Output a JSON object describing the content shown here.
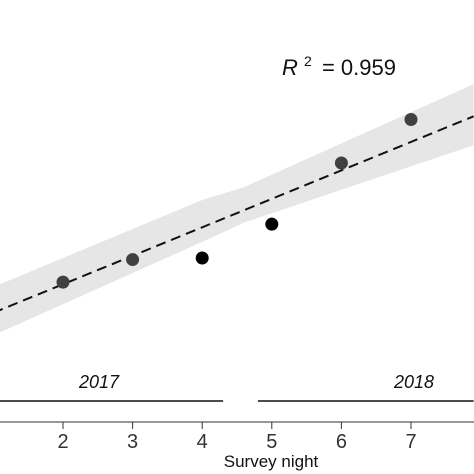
{
  "chart_data": {
    "type": "scatter",
    "xlabel": "Survey night",
    "ylabel": "",
    "title": "",
    "xlim": [
      1.0,
      7.9
    ],
    "ylim": [
      0.0,
      1.0
    ],
    "x_ticks": [
      2,
      3,
      4,
      5,
      6,
      7
    ],
    "x_tick_labels": [
      "2",
      "3",
      "4",
      "5",
      "6",
      "7"
    ],
    "grid": false,
    "series": [
      {
        "points": [
          {
            "x": 2,
            "y": 0.335,
            "color": "#404040"
          },
          {
            "x": 3,
            "y": 0.405,
            "color": "#404040"
          },
          {
            "x": 4,
            "y": 0.41,
            "color": "#000000"
          },
          {
            "x": 5,
            "y": 0.515,
            "color": "#000000"
          },
          {
            "x": 6,
            "y": 0.705,
            "color": "#404040"
          },
          {
            "x": 7,
            "y": 0.84,
            "color": "#404040"
          }
        ]
      }
    ],
    "fit": {
      "style": "dashed",
      "line": [
        [
          1.0,
          0.24
        ],
        [
          7.9,
          0.85
        ]
      ],
      "ci_upper": [
        [
          1.0,
          0.32
        ],
        [
          4.0,
          0.59
        ],
        [
          4.6,
          0.63
        ],
        [
          7.9,
          0.95
        ]
      ],
      "ci_lower": [
        [
          1.0,
          0.17
        ],
        [
          4.0,
          0.46
        ],
        [
          4.6,
          0.52
        ],
        [
          7.9,
          0.76
        ]
      ],
      "ci_color": "#e6e6e6"
    },
    "annotation": {
      "r2_label": "R",
      "r2_superscript": "2",
      "r2_value": "= 0.959"
    },
    "periods": [
      {
        "label": "2017",
        "x_from": 1.0,
        "x_to": 4.3
      },
      {
        "label": "2018",
        "x_from": 4.8,
        "x_to": 7.9
      }
    ]
  }
}
